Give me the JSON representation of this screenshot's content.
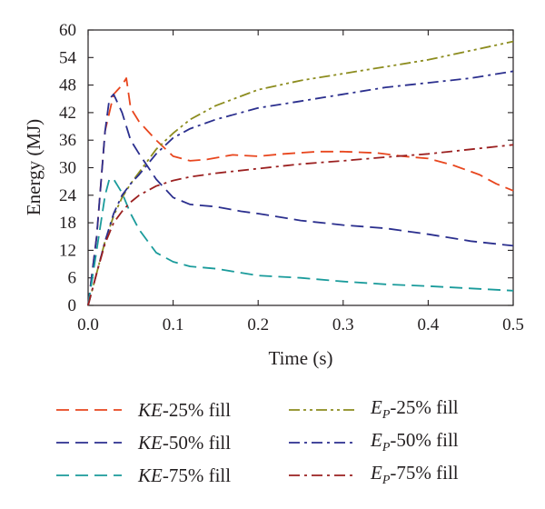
{
  "chart_data": {
    "type": "line",
    "title": "",
    "xlabel": "Time (s)",
    "ylabel": "Energy (MJ)",
    "xlim": [
      0,
      0.5
    ],
    "ylim": [
      0,
      60
    ],
    "x_ticks": [
      0.0,
      0.1,
      0.2,
      0.3,
      0.4,
      0.5
    ],
    "x_tick_labels": [
      "0.0",
      "0.1",
      "0.2",
      "0.3",
      "0.4",
      "0.5"
    ],
    "y_ticks": [
      0,
      6,
      12,
      18,
      24,
      30,
      36,
      42,
      48,
      54,
      60
    ],
    "y_tick_labels": [
      "0",
      "6",
      "12",
      "18",
      "24",
      "30",
      "36",
      "42",
      "48",
      "54",
      "60"
    ],
    "grid": false,
    "legend_placement": "bottom",
    "series": [
      {
        "id": "ke25",
        "name": "KE-25% fill",
        "name_parts": {
          "prefix": "KE",
          "sub": "",
          "suffix": "-25% fill"
        },
        "color": "#e8461e",
        "dash": "dash",
        "x": [
          0,
          0.01,
          0.02,
          0.03,
          0.04,
          0.045,
          0.05,
          0.06,
          0.08,
          0.1,
          0.12,
          0.14,
          0.17,
          0.2,
          0.23,
          0.27,
          0.3,
          0.34,
          0.37,
          0.4,
          0.43,
          0.46,
          0.48,
          0.5
        ],
        "y": [
          0,
          15,
          38,
          46,
          48,
          49.5,
          43,
          40,
          36,
          32.5,
          31.5,
          31.8,
          32.8,
          32.5,
          33,
          33.5,
          33.5,
          33.2,
          32.5,
          32,
          30.5,
          28.5,
          26.5,
          25
        ]
      },
      {
        "id": "ke50",
        "name": "KE-50% fill",
        "name_parts": {
          "prefix": "KE",
          "sub": "",
          "suffix": "-50% fill"
        },
        "color": "#2b2f8e",
        "dash": "dash",
        "x": [
          0,
          0.01,
          0.02,
          0.025,
          0.03,
          0.04,
          0.05,
          0.06,
          0.08,
          0.1,
          0.12,
          0.15,
          0.18,
          0.2,
          0.25,
          0.3,
          0.35,
          0.4,
          0.45,
          0.5
        ],
        "y": [
          0,
          15,
          38,
          45,
          46,
          42,
          36,
          33,
          27.5,
          23.5,
          22,
          21.5,
          20.5,
          20,
          18.5,
          17.5,
          16.8,
          15.5,
          14,
          13
        ]
      },
      {
        "id": "ke75",
        "name": "KE-75% fill",
        "name_parts": {
          "prefix": "KE",
          "sub": "",
          "suffix": "-75% fill"
        },
        "color": "#1a9b9b",
        "dash": "dash",
        "x": [
          0,
          0.01,
          0.02,
          0.025,
          0.03,
          0.04,
          0.05,
          0.06,
          0.08,
          0.1,
          0.12,
          0.15,
          0.2,
          0.25,
          0.3,
          0.35,
          0.4,
          0.45,
          0.5
        ],
        "y": [
          0,
          12,
          24,
          27.5,
          27.5,
          24.5,
          20,
          16.5,
          11.5,
          9.5,
          8.5,
          8,
          6.5,
          6,
          5.2,
          4.6,
          4.2,
          3.7,
          3.2
        ]
      },
      {
        "id": "ep25",
        "name": "Ep-25% fill",
        "name_parts": {
          "prefix": "E",
          "sub": "P",
          "suffix": "-25% fill"
        },
        "color": "#8c8c1e",
        "dash": "dashdotdot",
        "x": [
          0,
          0.01,
          0.02,
          0.03,
          0.04,
          0.05,
          0.06,
          0.08,
          0.1,
          0.12,
          0.15,
          0.2,
          0.25,
          0.3,
          0.35,
          0.4,
          0.45,
          0.5
        ],
        "y": [
          0,
          7,
          14,
          19.5,
          23.5,
          26.5,
          29,
          34,
          37.5,
          40.5,
          43.5,
          47,
          49,
          50.5,
          52,
          53.5,
          55.5,
          57.5
        ]
      },
      {
        "id": "ep50",
        "name": "Ep-50% fill",
        "name_parts": {
          "prefix": "E",
          "sub": "P",
          "suffix": "-50% fill"
        },
        "color": "#2b2f8e",
        "dash": "dashdot",
        "x": [
          0,
          0.01,
          0.02,
          0.03,
          0.04,
          0.05,
          0.06,
          0.08,
          0.1,
          0.12,
          0.15,
          0.2,
          0.25,
          0.3,
          0.35,
          0.4,
          0.45,
          0.5
        ],
        "y": [
          0,
          7,
          14,
          20,
          24,
          26.5,
          28.5,
          33,
          36.5,
          38.5,
          40.5,
          43,
          44.5,
          46,
          47.5,
          48.5,
          49.5,
          51
        ]
      },
      {
        "id": "ep75",
        "name": "Ep-75% fill",
        "name_parts": {
          "prefix": "E",
          "sub": "P",
          "suffix": "-75% fill"
        },
        "color": "#9b2020",
        "dash": "dashdot",
        "x": [
          0,
          0.01,
          0.02,
          0.03,
          0.04,
          0.05,
          0.06,
          0.08,
          0.1,
          0.12,
          0.15,
          0.2,
          0.25,
          0.3,
          0.35,
          0.4,
          0.45,
          0.5
        ],
        "y": [
          0,
          7,
          13.5,
          18,
          20.5,
          22.5,
          24,
          26,
          27.2,
          28,
          28.8,
          29.8,
          30.8,
          31.5,
          32.3,
          33,
          34,
          35
        ]
      }
    ]
  }
}
